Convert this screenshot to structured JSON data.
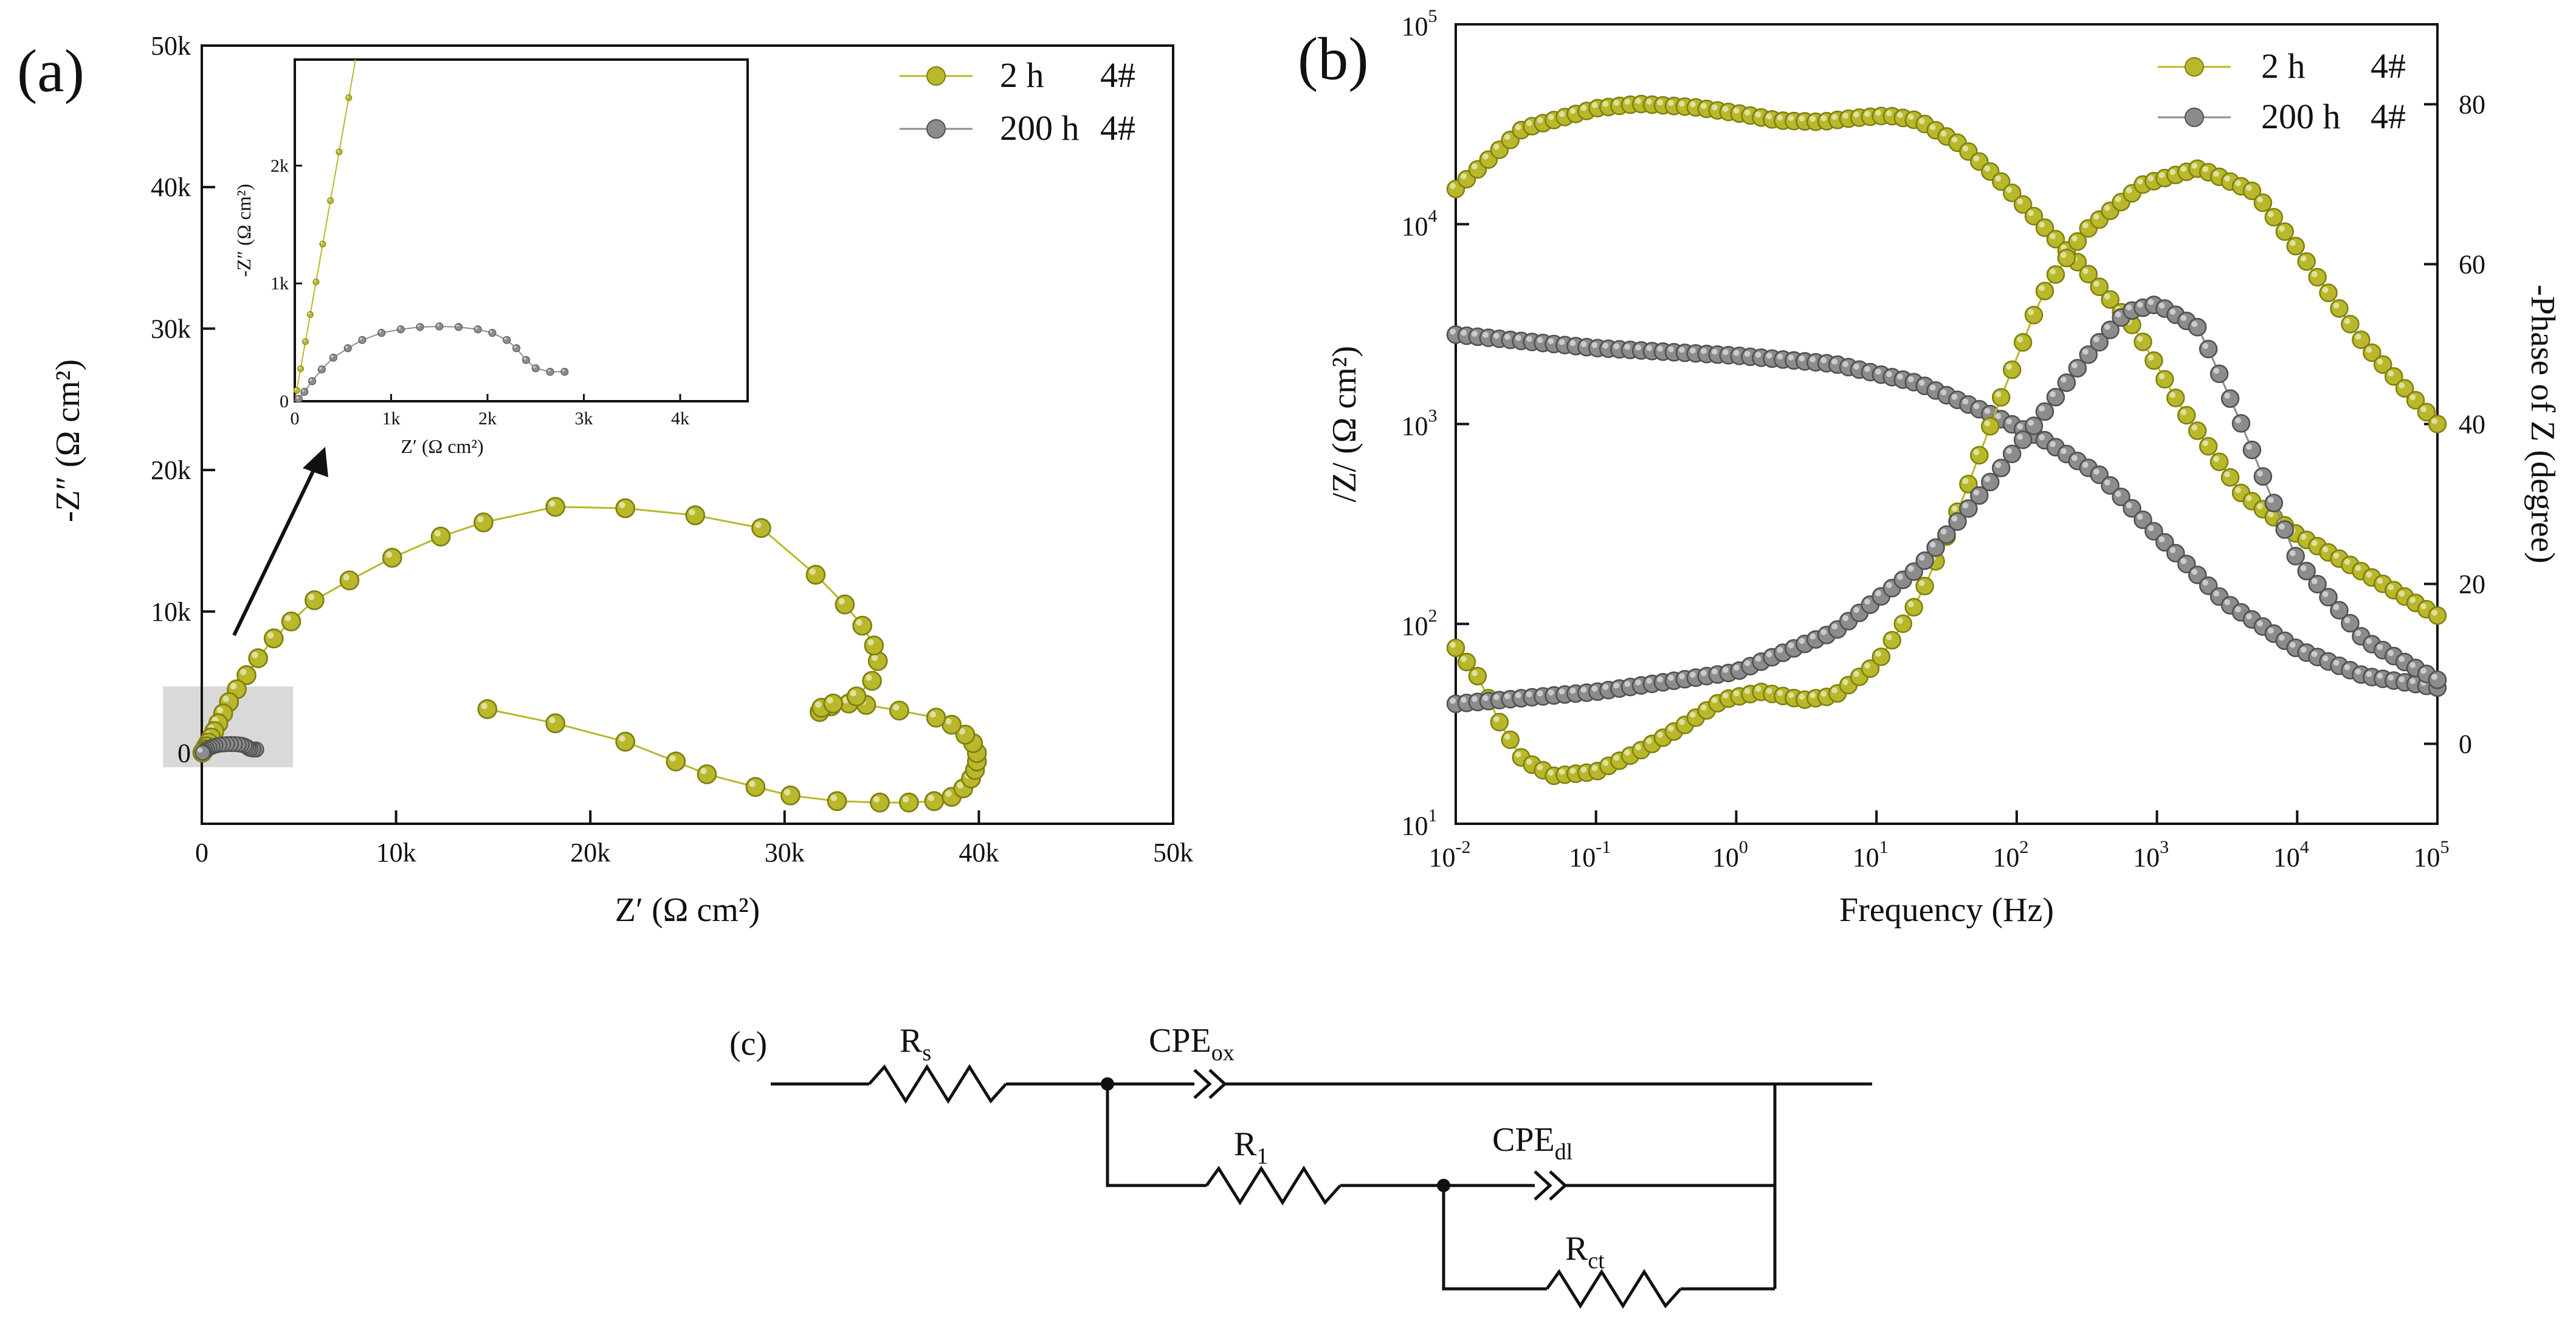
{
  "colors": {
    "olive": "#b8b82a",
    "olive_dark": "#7f7f10",
    "gray": "#8c8c8c",
    "gray_dark": "#505050",
    "shade": "#d9d9d9",
    "ink": "#111111"
  },
  "panels": {
    "a": "(a)",
    "b": "(b)",
    "c": "(c)"
  },
  "chart_data": [
    {
      "id": "nyquist",
      "type": "scatter",
      "title": "",
      "xlabel": "Z′ (Ω cm²)",
      "ylabel": "-Z″ (Ω cm²)",
      "xlim": [
        0,
        50000
      ],
      "ylim": [
        -5000,
        50000
      ],
      "x_ticks": [
        0,
        10000,
        20000,
        30000,
        40000,
        50000
      ],
      "x_tick_labels": [
        "0",
        "10k",
        "20k",
        "30k",
        "40k",
        "50k"
      ],
      "y_ticks": [
        0,
        10000,
        20000,
        30000,
        40000,
        50000
      ],
      "y_tick_labels": [
        "0",
        "10k",
        "20k",
        "30k",
        "40k",
        "50k"
      ],
      "legend": [
        {
          "name": "2 h",
          "tag": "4#"
        },
        {
          "name": "200 h",
          "tag": "4#"
        }
      ],
      "legend_position": "top-right",
      "series": [
        {
          "name": "2 h",
          "points": [
            [
              14700,
              3100
            ],
            [
              18200,
              2100
            ],
            [
              21800,
              800
            ],
            [
              24400,
              -600
            ],
            [
              26000,
              -1500
            ],
            [
              28500,
              -2400
            ],
            [
              30300,
              -3000
            ],
            [
              32700,
              -3400
            ],
            [
              34900,
              -3500
            ],
            [
              36400,
              -3500
            ],
            [
              37700,
              -3400
            ],
            [
              38600,
              -3100
            ],
            [
              39200,
              -2500
            ],
            [
              39600,
              -1800
            ],
            [
              39800,
              -1200
            ],
            [
              39900,
              -600
            ],
            [
              39900,
              0
            ],
            [
              39700,
              700
            ],
            [
              39300,
              1300
            ],
            [
              38600,
              2000
            ],
            [
              37800,
              2500
            ],
            [
              35900,
              3000
            ],
            [
              34200,
              3400
            ],
            [
              33300,
              3500
            ],
            [
              32400,
              3300
            ],
            [
              31900,
              3100
            ],
            [
              31800,
              2900
            ],
            [
              31900,
              3200
            ],
            [
              32500,
              3500
            ],
            [
              33700,
              4000
            ],
            [
              34500,
              5100
            ],
            [
              34800,
              6500
            ],
            [
              34600,
              7600
            ],
            [
              34000,
              9000
            ],
            [
              33100,
              10500
            ],
            [
              31600,
              12600
            ],
            [
              28800,
              15900
            ],
            [
              25400,
              16800
            ],
            [
              21800,
              17300
            ],
            [
              18200,
              17400
            ],
            [
              14500,
              16300
            ],
            [
              12300,
              15300
            ],
            [
              9800,
              13800
            ],
            [
              7600,
              12200
            ],
            [
              5800,
              10800
            ],
            [
              4600,
              9300
            ],
            [
              3700,
              8100
            ],
            [
              2900,
              6700
            ],
            [
              2300,
              5500
            ],
            [
              1800,
              4500
            ],
            [
              1400,
              3600
            ],
            [
              1100,
              2800
            ],
            [
              850,
              2100
            ],
            [
              650,
              1550
            ],
            [
              480,
              1100
            ],
            [
              340,
              750
            ],
            [
              230,
              480
            ],
            [
              150,
              270
            ],
            [
              80,
              120
            ],
            [
              30,
              30
            ]
          ]
        },
        {
          "name": "200 h",
          "points": [
            [
              2800,
              250
            ],
            [
              2650,
              250
            ],
            [
              2500,
              280
            ],
            [
              2400,
              350
            ],
            [
              2300,
              450
            ],
            [
              2200,
              520
            ],
            [
              2050,
              580
            ],
            [
              1900,
              610
            ],
            [
              1700,
              630
            ],
            [
              1500,
              635
            ],
            [
              1300,
              630
            ],
            [
              1100,
              610
            ],
            [
              900,
              580
            ],
            [
              700,
              520
            ],
            [
              550,
              450
            ],
            [
              400,
              370
            ],
            [
              280,
              270
            ],
            [
              180,
              170
            ],
            [
              100,
              80
            ],
            [
              40,
              20
            ]
          ]
        }
      ],
      "inset": {
        "xlabel": "Z′ (Ω cm²)",
        "ylabel": "-Z″ (Ω cm²)",
        "xlim": [
          0,
          4700
        ],
        "ylim": [
          0,
          2900
        ],
        "x_ticks": [
          0,
          1000,
          2000,
          3000,
          4000
        ],
        "x_tick_labels": [
          "0",
          "1k",
          "2k",
          "3k",
          "4k"
        ],
        "y_ticks": [
          0,
          1000,
          2000
        ],
        "y_tick_labels": [
          "0",
          "1k",
          "2k"
        ]
      },
      "zoom_box": {
        "xlim": [
          -2000,
          4700
        ],
        "ylim": [
          -1000,
          4700
        ]
      }
    },
    {
      "id": "bode",
      "type": "scatter",
      "title": "",
      "xlabel": "Frequency (Hz)",
      "ylabel": "/Z/ (Ω cm²)",
      "y2label": "-Phase of Z (degree)",
      "xscale": "log",
      "yscale": "log",
      "xlim": [
        0.01,
        100000
      ],
      "ylim": [
        10,
        100000
      ],
      "y2lim": [
        -10,
        90
      ],
      "x_ticks": [
        0.01,
        0.1,
        1,
        10,
        100,
        1000,
        10000,
        100000
      ],
      "x_tick_labels": [
        "10",
        "10",
        "10",
        "10",
        "10",
        "10",
        "10",
        "10"
      ],
      "x_tick_exps": [
        "-2",
        "-1",
        "0",
        "1",
        "2",
        "3",
        "4",
        "5"
      ],
      "y_ticks": [
        10,
        100,
        1000,
        10000,
        100000
      ],
      "y_tick_labels": [
        "10",
        "10",
        "10",
        "10",
        "10"
      ],
      "y_tick_exps": [
        "1",
        "2",
        "3",
        "4",
        "5"
      ],
      "y2_ticks": [
        0,
        20,
        40,
        60,
        80
      ],
      "y2_tick_labels": [
        "0",
        "20",
        "40",
        "60",
        "80"
      ],
      "legend": [
        {
          "name": "2 h",
          "tag": "4#"
        },
        {
          "name": "200 h",
          "tag": "4#"
        }
      ],
      "legend_position": "top-right",
      "series": [
        {
          "name": "2 h |Z|",
          "axis": "left",
          "points": [
            [
              0.01,
              15000
            ],
            [
              0.03,
              30000
            ],
            [
              0.1,
              38000
            ],
            [
              0.2,
              40000
            ],
            [
              0.5,
              38500
            ],
            [
              1,
              36000
            ],
            [
              2,
              33000
            ],
            [
              4,
              32500
            ],
            [
              7,
              34000
            ],
            [
              12,
              35000
            ],
            [
              20,
              33000
            ],
            [
              40,
              25000
            ],
            [
              80,
              16000
            ],
            [
              150,
              10000
            ],
            [
              300,
              6000
            ],
            [
              700,
              3000
            ],
            [
              1500,
              1200
            ],
            [
              4000,
              450
            ],
            [
              10000,
              280
            ],
            [
              30000,
              180
            ],
            [
              100000,
              110
            ]
          ]
        },
        {
          "name": "200 h |Z|",
          "axis": "left",
          "points": [
            [
              0.01,
              2800
            ],
            [
              0.1,
              2400
            ],
            [
              1,
              2200
            ],
            [
              5,
              2000
            ],
            [
              20,
              1600
            ],
            [
              60,
              1150
            ],
            [
              150,
              850
            ],
            [
              400,
              550
            ],
            [
              1000,
              280
            ],
            [
              3000,
              130
            ],
            [
              10000,
              75
            ],
            [
              30000,
              55
            ],
            [
              100000,
              48
            ]
          ]
        },
        {
          "name": "2 h phase",
          "axis": "right",
          "points": [
            [
              0.01,
              12
            ],
            [
              0.015,
              8
            ],
            [
              0.02,
              3
            ],
            [
              0.03,
              -2
            ],
            [
              0.05,
              -4
            ],
            [
              0.1,
              -3.5
            ],
            [
              0.2,
              -1
            ],
            [
              0.4,
              2
            ],
            [
              0.8,
              5.5
            ],
            [
              1.5,
              6.5
            ],
            [
              3,
              5.5
            ],
            [
              5,
              6
            ],
            [
              10,
              10
            ],
            [
              20,
              18
            ],
            [
              40,
              30
            ],
            [
              80,
              44
            ],
            [
              150,
              56
            ],
            [
              300,
              64
            ],
            [
              800,
              70
            ],
            [
              2000,
              72
            ],
            [
              5000,
              69
            ],
            [
              10000,
              62
            ],
            [
              30000,
              50
            ],
            [
              100000,
              40
            ]
          ]
        },
        {
          "name": "200 h phase",
          "axis": "right",
          "points": [
            [
              0.01,
              5
            ],
            [
              0.1,
              6.5
            ],
            [
              1,
              9
            ],
            [
              5,
              14
            ],
            [
              20,
              22
            ],
            [
              60,
              32
            ],
            [
              150,
              41
            ],
            [
              300,
              48
            ],
            [
              600,
              54
            ],
            [
              1000,
              55
            ],
            [
              2000,
              52
            ],
            [
              4000,
              40
            ],
            [
              10000,
              23
            ],
            [
              30000,
              13
            ],
            [
              100000,
              8
            ]
          ]
        }
      ]
    }
  ],
  "circuit": {
    "labels": {
      "rs": {
        "main": "R",
        "sub": "s"
      },
      "cpe_ox": {
        "main": "CPE",
        "sub": "ox"
      },
      "r1": {
        "main": "R",
        "sub": "1"
      },
      "cpe_dl": {
        "main": "CPE",
        "sub": "dl"
      },
      "rct": {
        "main": "R",
        "sub": "ct"
      }
    }
  }
}
